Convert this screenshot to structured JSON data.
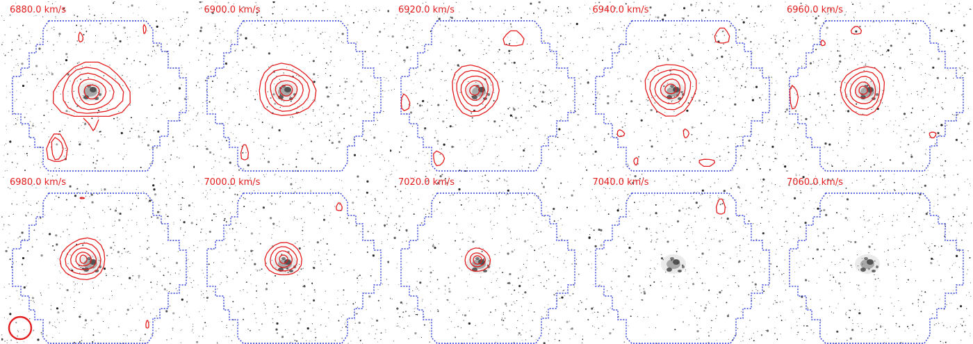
{
  "figure": {
    "panels": [
      {
        "velocity_label": "6880.0 km/s",
        "has_emission": true
      },
      {
        "velocity_label": "6900.0 km/s",
        "has_emission": true
      },
      {
        "velocity_label": "6920.0 km/s",
        "has_emission": true
      },
      {
        "velocity_label": "6940.0 km/s",
        "has_emission": true
      },
      {
        "velocity_label": "6960.0 km/s",
        "has_emission": true
      },
      {
        "velocity_label": "6980.0 km/s",
        "has_emission": true
      },
      {
        "velocity_label": "7000.0 km/s",
        "has_emission": true
      },
      {
        "velocity_label": "7020.0 km/s",
        "has_emission": true
      },
      {
        "velocity_label": "7040.0 km/s",
        "has_emission": false
      },
      {
        "velocity_label": "7060.0 km/s",
        "has_emission": false
      }
    ],
    "colors": {
      "contour": "#e31a1c",
      "footprint_outline": "#2b3bd6",
      "label": "#e31a1c",
      "stars": "#111111",
      "background": "#ffffff"
    },
    "beam_marker": "red circle (beam) in first panel of second row"
  }
}
